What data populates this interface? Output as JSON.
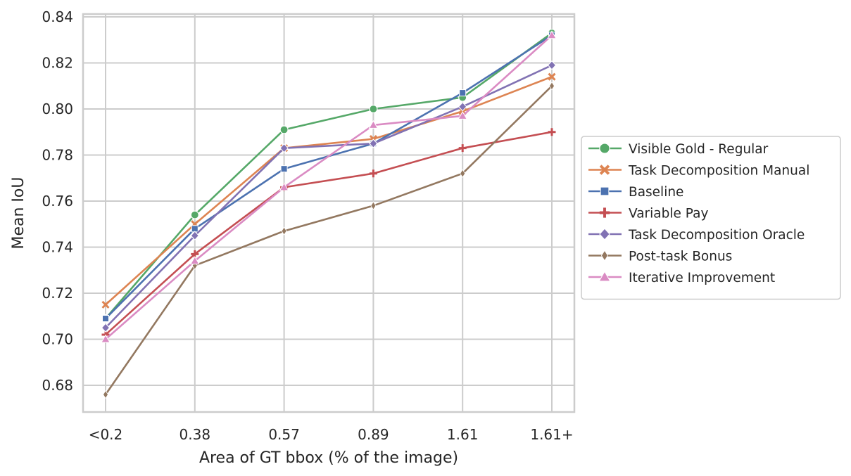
{
  "chart_data": {
    "type": "line",
    "xlabel": "Area of GT bbox (% of the image)",
    "ylabel": "Mean IoU",
    "categories": [
      "<0.2",
      "0.38",
      "0.57",
      "0.89",
      "1.61",
      "1.61+"
    ],
    "ylim": [
      0.668,
      0.84
    ],
    "yticks": [
      0.68,
      0.7,
      0.72,
      0.74,
      0.76,
      0.78,
      0.8,
      0.82,
      0.84
    ],
    "grid": true,
    "legend_position": "right-outside",
    "series": [
      {
        "name": "Visible Gold - Regular",
        "color": "#55a868",
        "marker": "circle",
        "values": [
          0.709,
          0.754,
          0.791,
          0.8,
          0.805,
          0.833
        ]
      },
      {
        "name": "Task Decomposition Manual",
        "color": "#dd8452",
        "marker": "x",
        "values": [
          0.715,
          0.75,
          0.783,
          0.787,
          0.799,
          0.814
        ]
      },
      {
        "name": "Baseline",
        "color": "#4c72b0",
        "marker": "square",
        "values": [
          0.709,
          0.748,
          0.774,
          0.785,
          0.807,
          0.832
        ]
      },
      {
        "name": "Variable Pay",
        "color": "#c44e52",
        "marker": "plus",
        "values": [
          0.702,
          0.737,
          0.766,
          0.772,
          0.783,
          0.79
        ]
      },
      {
        "name": "Task Decomposition Oracle",
        "color": "#8172b3",
        "marker": "diamond",
        "values": [
          0.705,
          0.745,
          0.783,
          0.785,
          0.801,
          0.819
        ]
      },
      {
        "name": "Post-task Bonus",
        "color": "#937860",
        "marker": "thin-diamond",
        "values": [
          0.676,
          0.732,
          0.747,
          0.758,
          0.772,
          0.81
        ]
      },
      {
        "name": "Iterative Improvement",
        "color": "#da8bc3",
        "marker": "triangle",
        "values": [
          0.7,
          0.734,
          0.766,
          0.793,
          0.797,
          0.832
        ]
      }
    ]
  }
}
